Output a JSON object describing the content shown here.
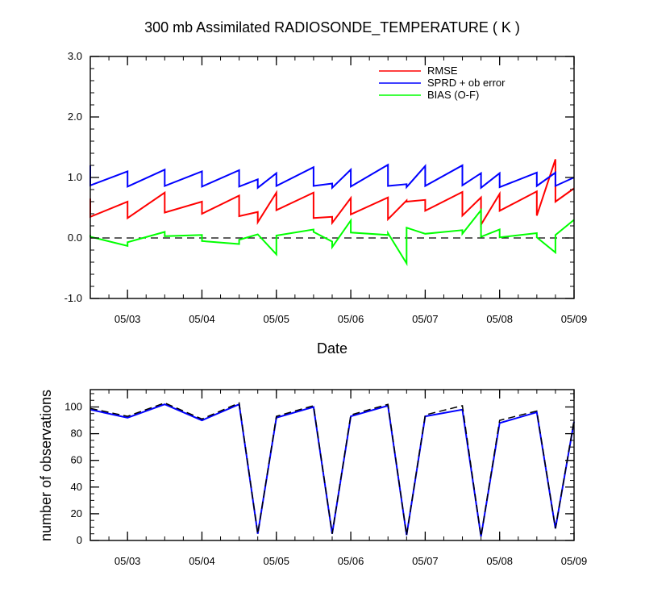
{
  "chart_data": [
    {
      "type": "line",
      "title": "300 mb Assimilated RADIOSONDE_TEMPERATURE ( K )",
      "xlabel": "Date",
      "ylabel": "",
      "xlim": [
        0,
        6.5
      ],
      "ylim": [
        -1.0,
        3.0
      ],
      "x_tick_labels": [
        "05/03",
        "05/04",
        "05/05",
        "05/06",
        "05/07",
        "05/08",
        "05/09"
      ],
      "x_tick_positions": [
        0.5,
        1.5,
        2.5,
        3.5,
        4.5,
        5.5,
        6.5
      ],
      "y_tick_labels": [
        "-1.0",
        "0.0",
        "1.0",
        "2.0",
        "3.0"
      ],
      "y_tick_values": [
        -1.0,
        0.0,
        1.0,
        2.0,
        3.0
      ],
      "zero_line": true,
      "legend_position": "top-right",
      "series": [
        {
          "name": "RMSE",
          "color": "#ff0000",
          "x": [
            0,
            0,
            0.5,
            0.5,
            1,
            1,
            1.5,
            1.5,
            2,
            2,
            2.25,
            2.25,
            2.5,
            2.5,
            3,
            3,
            3.25,
            3.25,
            3.5,
            3.5,
            4,
            4,
            4.25,
            4.25,
            4.5,
            4.5,
            5,
            5,
            5.25,
            5.25,
            5.5,
            5.5,
            6,
            6,
            6.25,
            6.25,
            6.5
          ],
          "values": [
            0.65,
            0.35,
            0.6,
            0.33,
            0.75,
            0.42,
            0.6,
            0.4,
            0.7,
            0.36,
            0.43,
            0.26,
            0.75,
            0.46,
            0.75,
            0.33,
            0.35,
            0.25,
            0.66,
            0.39,
            0.67,
            0.31,
            0.62,
            0.6,
            0.63,
            0.45,
            0.76,
            0.37,
            0.67,
            0.22,
            0.73,
            0.45,
            0.77,
            0.37,
            1.3,
            0.6,
            0.82
          ]
        },
        {
          "name": "SPRD + ob error",
          "color": "#0000ff",
          "x": [
            0,
            0,
            0.5,
            0.5,
            1,
            1,
            1.5,
            1.5,
            2,
            2,
            2.25,
            2.25,
            2.5,
            2.5,
            3,
            3,
            3.25,
            3.25,
            3.5,
            3.5,
            4,
            4,
            4.25,
            4.25,
            4.5,
            4.5,
            5,
            5,
            5.25,
            5.25,
            5.5,
            5.5,
            6,
            6,
            6.25,
            6.25,
            6.5
          ],
          "values": [
            1.2,
            0.87,
            1.1,
            0.85,
            1.13,
            0.86,
            1.1,
            0.85,
            1.12,
            0.85,
            0.97,
            0.83,
            1.07,
            0.86,
            1.17,
            0.86,
            0.9,
            0.83,
            1.13,
            0.85,
            1.21,
            0.86,
            0.89,
            0.84,
            1.19,
            0.86,
            1.2,
            0.87,
            1.07,
            0.83,
            1.07,
            0.84,
            1.08,
            0.86,
            1.08,
            0.86,
            1.0
          ]
        },
        {
          "name": "BIAS (O-F)",
          "color": "#00ff00",
          "x": [
            0,
            0,
            0.5,
            0.5,
            1,
            1,
            1.5,
            1.5,
            2,
            2,
            2.25,
            2.25,
            2.5,
            2.5,
            3,
            3,
            3.25,
            3.25,
            3.5,
            3.5,
            4,
            4,
            4.25,
            4.25,
            4.5,
            4.5,
            5,
            5,
            5.25,
            5.25,
            5.5,
            5.5,
            6,
            6,
            6.25,
            6.25,
            6.5
          ],
          "values": [
            0.05,
            0.02,
            -0.13,
            -0.07,
            0.1,
            0.03,
            0.05,
            -0.05,
            -0.1,
            -0.03,
            0.06,
            0.06,
            -0.27,
            0.04,
            0.14,
            0.1,
            -0.06,
            -0.15,
            0.29,
            0.09,
            0.05,
            0.08,
            -0.42,
            0.17,
            0.07,
            0.07,
            0.13,
            0.07,
            0.46,
            0.02,
            0.14,
            0.01,
            0.08,
            0.01,
            -0.24,
            0.05,
            0.3
          ]
        }
      ]
    },
    {
      "type": "line",
      "title": "",
      "xlabel": "",
      "ylabel": "number of observations",
      "xlim": [
        0,
        6.5
      ],
      "ylim": [
        0,
        113
      ],
      "x_tick_labels": [
        "05/03",
        "05/04",
        "05/05",
        "05/06",
        "05/07",
        "05/08",
        "05/09"
      ],
      "x_tick_positions": [
        0.5,
        1.5,
        2.5,
        3.5,
        4.5,
        5.5,
        6.5
      ],
      "y_tick_labels": [
        "0",
        "20",
        "40",
        "60",
        "80",
        "100"
      ],
      "y_tick_values": [
        0,
        20,
        40,
        60,
        80,
        100
      ],
      "series": [
        {
          "color": "#0000ff",
          "dash": "solid",
          "x": [
            0,
            0.5,
            1,
            1.5,
            2,
            2.25,
            2.5,
            3,
            3.25,
            3.5,
            4,
            4.25,
            4.5,
            5,
            5.25,
            5.5,
            6,
            6.25,
            6.5
          ],
          "values": [
            98,
            92,
            102,
            90,
            102,
            5,
            92,
            100,
            5,
            93,
            101,
            4,
            93,
            98,
            3,
            88,
            96,
            9,
            89
          ]
        },
        {
          "color": "#000000",
          "dash": "dashed",
          "x": [
            0,
            0.5,
            1,
            1.5,
            2,
            2.25,
            2.5,
            3,
            3.25,
            3.5,
            4,
            4.25,
            4.5,
            5,
            5.25,
            5.5,
            6,
            6.25,
            6.5
          ],
          "values": [
            99,
            93,
            103,
            91,
            103,
            5,
            93,
            101,
            5,
            94,
            102,
            4,
            94,
            101,
            3,
            90,
            97,
            9,
            90
          ]
        }
      ]
    }
  ]
}
